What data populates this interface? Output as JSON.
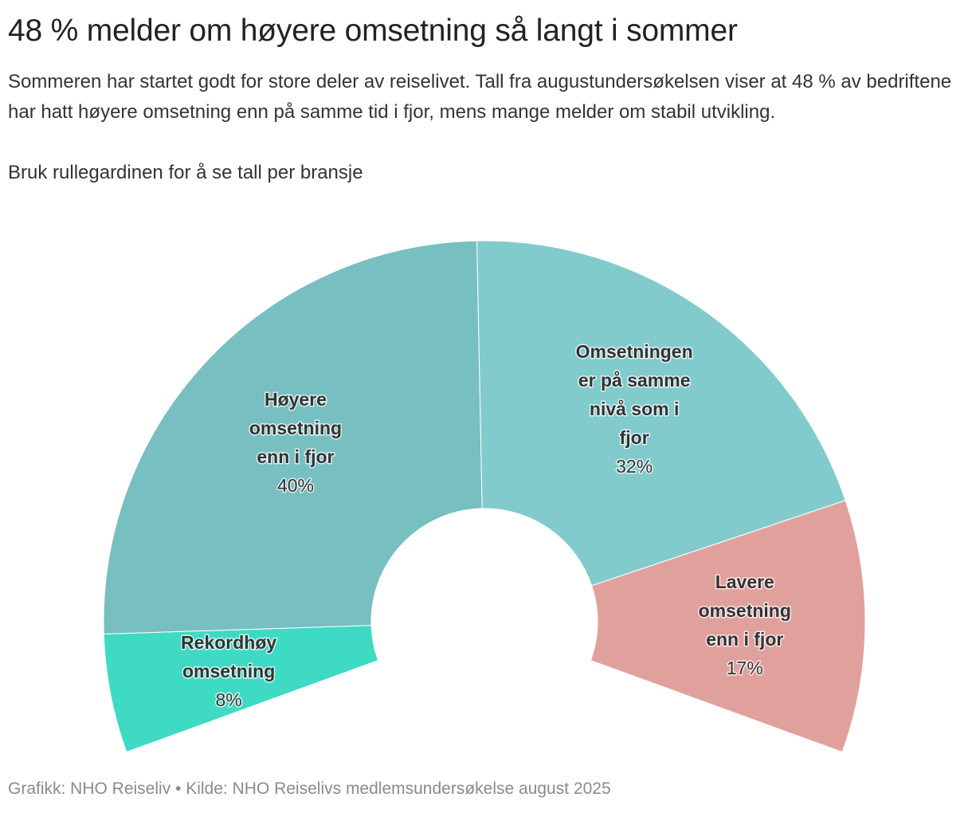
{
  "header": {
    "title": "48 % melder om høyere omsetning så langt i sommer",
    "subtitle": "Sommeren har startet godt for store deler av reiselivet. Tall fra augustundersøkelsen viser at 48 % av bedriftene har hatt høyere omsetning enn på samme tid i fjor, mens mange melder om stabil utvikling.",
    "instruction": "Bruk rullegardinen for å se tall per bransje"
  },
  "chart_data": {
    "type": "pie",
    "style": "semi-donut",
    "categories": [
      "Rekordhøy omsetning",
      "Høyere omsetning enn i fjor",
      "Omsetningen er på samme nivå som i fjor",
      "Lavere omsetning enn i fjor"
    ],
    "values": [
      8,
      40,
      32,
      17
    ],
    "value_labels": [
      "8%",
      "40%",
      "32%",
      "17%"
    ],
    "label_lines": [
      [
        "Rekordhøy",
        "omsetning"
      ],
      [
        "Høyere",
        "omsetning",
        "enn i fjor"
      ],
      [
        "Omsetningen",
        "er på samme",
        "nivå som i",
        "fjor"
      ],
      [
        "Lavere",
        "omsetning",
        "enn i fjor"
      ]
    ],
    "colors": [
      "#3fdac4",
      "#78bfc1",
      "#82cbcc",
      "#e0a19c"
    ],
    "legend": "none"
  },
  "footer": {
    "credit": "Grafikk: NHO Reiseliv • Kilde: NHO Reiselivs medlemsundersøkelse august 2025"
  }
}
